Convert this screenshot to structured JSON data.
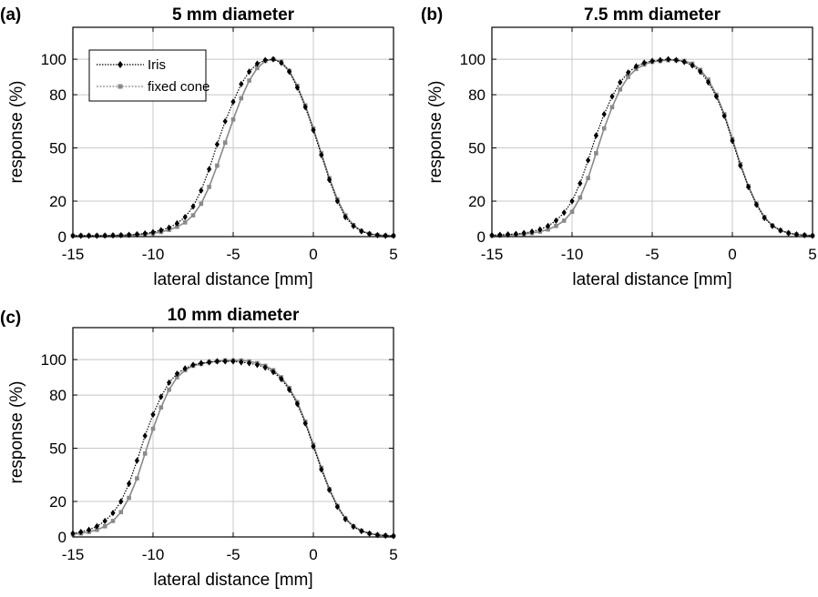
{
  "chart_data": [
    {
      "panel": "(a)",
      "title": "5 mm diameter",
      "type": "line",
      "xlabel": "lateral distance [mm]",
      "ylabel": "response (%)",
      "xlim": [
        -15,
        5
      ],
      "ylim": [
        0,
        118
      ],
      "xticks": [
        -15,
        -10,
        -5,
        0,
        5
      ],
      "xtick_labels": [
        "-15",
        "-10",
        "-5",
        "0",
        "5"
      ],
      "yticks": [
        0,
        20,
        50,
        80,
        100
      ],
      "ytick_labels": [
        "0",
        "20",
        "50",
        "80",
        "100"
      ],
      "grid": true,
      "legend": "top-left",
      "x": [
        -15,
        -14.5,
        -14,
        -13.5,
        -13,
        -12.5,
        -12,
        -11.5,
        -11,
        -10.5,
        -10,
        -9.5,
        -9,
        -8.5,
        -8,
        -7.5,
        -7,
        -6.5,
        -6,
        -5.5,
        -5,
        -4.5,
        -4,
        -3.5,
        -3,
        -2.5,
        -2,
        -1.5,
        -1,
        -0.5,
        0,
        0.5,
        1,
        1.5,
        2,
        2.5,
        3,
        3.5,
        4,
        4.5,
        5
      ],
      "series": [
        {
          "name": "Iris",
          "color": "#000000",
          "marker": "diamond",
          "values": [
            0.5,
            0.5,
            0.5,
            0.5,
            0.6,
            0.7,
            0.8,
            1,
            1.3,
            1.8,
            2.5,
            3.6,
            5,
            7.5,
            11,
            17,
            26,
            38,
            52,
            65,
            76,
            86,
            93,
            97.5,
            99.5,
            100,
            98,
            93,
            84,
            73,
            60,
            46,
            32,
            20,
            11,
            6,
            3,
            1.5,
            0.8,
            0.5,
            0.5
          ]
        },
        {
          "name": "fixed cone",
          "color": "#8a8a8a",
          "marker": "square",
          "values": [
            0.5,
            0.5,
            0.5,
            0.5,
            0.5,
            0.6,
            0.7,
            0.8,
            1,
            1.3,
            1.8,
            2.6,
            3.8,
            5.5,
            8,
            12,
            18.5,
            28,
            40,
            53,
            66,
            78,
            88,
            95,
            99,
            100,
            98.5,
            93.5,
            85,
            74,
            61,
            47,
            33,
            21,
            12,
            6.5,
            3.2,
            1.6,
            0.9,
            0.6,
            0.5
          ]
        }
      ]
    },
    {
      "panel": "(b)",
      "title": "7.5 mm diameter",
      "type": "line",
      "xlabel": "lateral distance [mm]",
      "ylabel": "response (%)",
      "xlim": [
        -15,
        5
      ],
      "ylim": [
        0,
        118
      ],
      "xticks": [
        -15,
        -10,
        -5,
        0,
        5
      ],
      "xtick_labels": [
        "-15",
        "-10",
        "-5",
        "0",
        "5"
      ],
      "yticks": [
        0,
        20,
        50,
        80,
        100
      ],
      "ytick_labels": [
        "0",
        "20",
        "50",
        "80",
        "100"
      ],
      "grid": true,
      "x": [
        -15,
        -14.5,
        -14,
        -13.5,
        -13,
        -12.5,
        -12,
        -11.5,
        -11,
        -10.5,
        -10,
        -9.5,
        -9,
        -8.5,
        -8,
        -7.5,
        -7,
        -6.5,
        -6,
        -5.5,
        -5,
        -4.5,
        -4,
        -3.5,
        -3,
        -2.5,
        -2,
        -1.5,
        -1,
        -0.5,
        0,
        0.5,
        1,
        1.5,
        2,
        2.5,
        3,
        3.5,
        4,
        4.5,
        5
      ],
      "series": [
        {
          "name": "Iris",
          "color": "#000000",
          "marker": "diamond",
          "values": [
            0.8,
            1,
            1.2,
            1.5,
            2,
            2.8,
            4,
            6,
            9,
            13.5,
            20,
            30,
            43,
            57,
            69,
            79,
            87,
            92.5,
            96,
            98,
            99,
            99.5,
            100,
            99.5,
            98.5,
            96.5,
            93,
            87,
            79,
            68,
            54,
            40,
            28,
            18,
            10.5,
            6,
            3.5,
            2,
            1.2,
            0.8,
            0.5
          ]
        },
        {
          "name": "fixed cone",
          "color": "#8a8a8a",
          "marker": "square",
          "values": [
            0.5,
            0.7,
            0.9,
            1.1,
            1.5,
            2,
            2.8,
            4,
            6,
            9,
            14,
            22,
            33,
            47,
            61,
            73,
            83,
            90,
            94.5,
            97,
            98.5,
            99,
            99.5,
            99.5,
            99,
            97.5,
            94,
            88.5,
            80,
            69,
            55,
            41,
            28.5,
            18.5,
            11,
            6.2,
            3.5,
            2,
            1.2,
            0.8,
            0.5
          ]
        }
      ]
    },
    {
      "panel": "(c)",
      "title": "10 mm diameter",
      "type": "line",
      "xlabel": "lateral distance [mm]",
      "ylabel": "response (%)",
      "xlim": [
        -15,
        5
      ],
      "ylim": [
        0,
        118
      ],
      "xticks": [
        -15,
        -10,
        -5,
        0,
        5
      ],
      "xtick_labels": [
        "-15",
        "-10",
        "-5",
        "0",
        "5"
      ],
      "yticks": [
        0,
        20,
        50,
        80,
        100
      ],
      "ytick_labels": [
        "0",
        "20",
        "50",
        "80",
        "100"
      ],
      "grid": true,
      "x": [
        -15,
        -14.5,
        -14,
        -13.5,
        -13,
        -12.5,
        -12,
        -11.5,
        -11,
        -10.5,
        -10,
        -9.5,
        -9,
        -8.5,
        -8,
        -7.5,
        -7,
        -6.5,
        -6,
        -5.5,
        -5,
        -4.5,
        -4,
        -3.5,
        -3,
        -2.5,
        -2,
        -1.5,
        -1,
        -0.5,
        0,
        0.5,
        1,
        1.5,
        2,
        2.5,
        3,
        3.5,
        4,
        4.5,
        5
      ],
      "series": [
        {
          "name": "Iris",
          "color": "#000000",
          "marker": "diamond",
          "values": [
            2,
            2.8,
            4,
            6,
            9,
            13.5,
            20,
            30,
            43,
            57,
            69,
            79,
            87,
            92,
            95,
            97,
            98,
            98.5,
            99,
            99,
            99,
            98.5,
            98,
            97,
            95.5,
            93,
            89,
            83,
            75,
            64,
            51,
            38,
            26.5,
            17,
            10,
            5.8,
            3.3,
            1.9,
            1.1,
            0.7,
            0.5
          ]
        },
        {
          "name": "fixed cone",
          "color": "#8a8a8a",
          "marker": "square",
          "values": [
            1.5,
            2,
            2.8,
            4,
            6,
            9,
            14,
            22,
            33,
            47,
            61,
            73,
            83,
            90,
            94,
            96.5,
            97.5,
            98.5,
            99,
            99.5,
            99.5,
            99.5,
            99,
            98,
            96.5,
            94,
            90,
            84,
            76,
            65,
            52,
            39,
            27,
            17.5,
            10.5,
            6,
            3.5,
            2,
            1.2,
            0.8,
            0.5
          ]
        }
      ]
    }
  ]
}
